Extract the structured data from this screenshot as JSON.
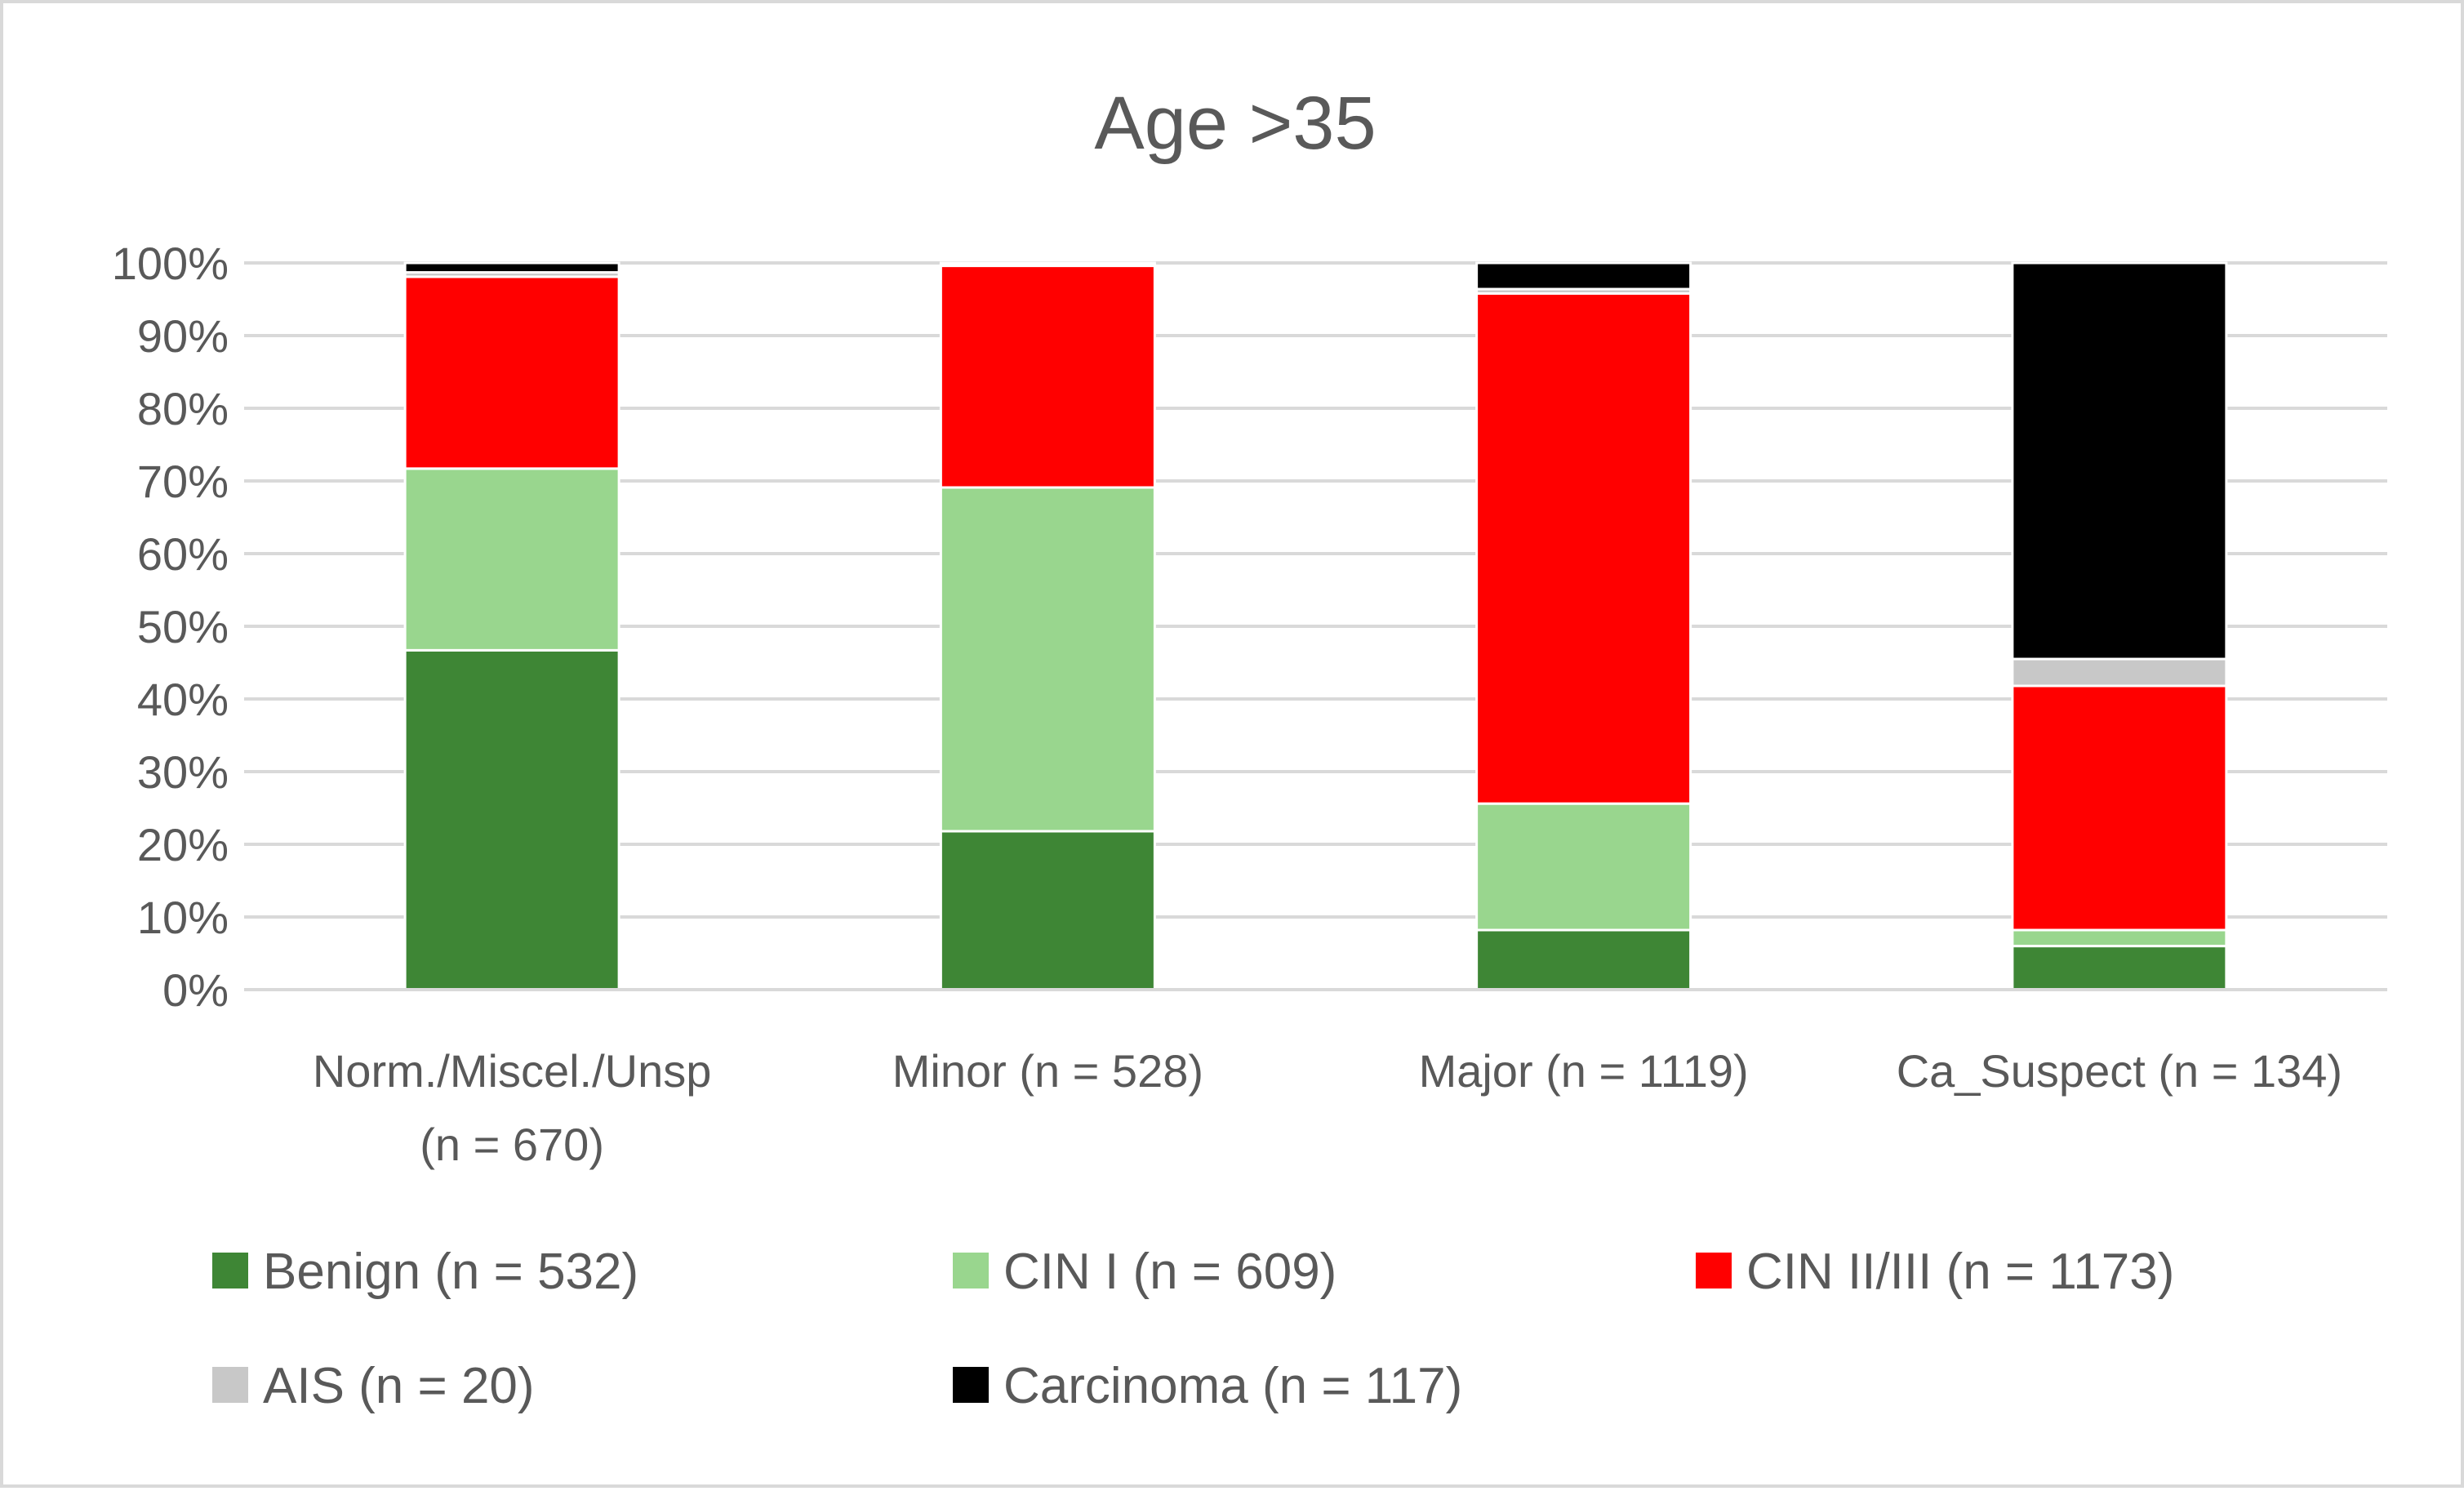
{
  "chart_data": {
    "type": "bar",
    "stacked": true,
    "percent_stacked": true,
    "title": "Age >35",
    "xlabel": "",
    "ylabel": "",
    "ylim": [
      0,
      100
    ],
    "y_ticks": [
      "0%",
      "10%",
      "20%",
      "30%",
      "40%",
      "50%",
      "60%",
      "70%",
      "80%",
      "90%",
      "100%"
    ],
    "grid": true,
    "legend_position": "bottom",
    "categories": [
      [
        "Norm./Miscel./Unsp",
        "(n = 670)"
      ],
      [
        "Minor (n = 528)"
      ],
      [
        "Major (n = 1119)"
      ],
      [
        "Ca_Suspect (n = 134)"
      ]
    ],
    "series": [
      {
        "name": "Benign (n = 532)",
        "color": "#3e8635",
        "values": [
          46.7,
          21.8,
          8.2,
          6.0
        ]
      },
      {
        "name": "CIN I (n = 609)",
        "color": "#99d68e",
        "values": [
          25.0,
          47.3,
          17.4,
          2.2
        ]
      },
      {
        "name": "CIN II/III (n = 1173)",
        "color": "#ff0000",
        "values": [
          26.4,
          30.5,
          70.2,
          33.6
        ]
      },
      {
        "name": "AIS (n = 20)",
        "color": "#c8c8c8",
        "values": [
          0.6,
          0.1,
          0.6,
          3.7
        ]
      },
      {
        "name": "Carcinoma (n = 117)",
        "color": "#000000",
        "values": [
          1.3,
          0.3,
          3.6,
          54.5
        ]
      }
    ]
  }
}
